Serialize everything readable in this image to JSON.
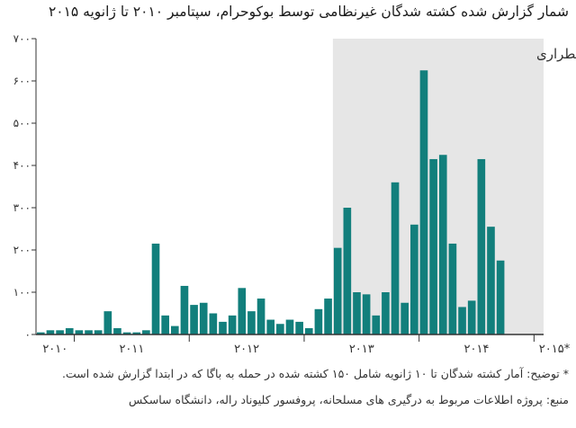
{
  "title": "شمار گزارش شده کشته شدگان غیرنظامی توسط بوکوحرام، سپتامبر ۲۰۱۰ تا ژانویه ۲۰۱۵",
  "note": "* توضیح: آمار کشته شدگان تا ۱۰ ژانویه شامل ۱۵۰ کشته شده در حمله به باگا که در ابتدا گزارش شده است.",
  "source": "منبع: پروژه اطلاعات مربوط به درگیری های مسلحانه، پروفسور کلیوناد راله، دانشگاه ساسکس",
  "colors": {
    "bar": "#127f7c",
    "shade": "#e6e6e6",
    "axis": "#333333",
    "grid": "#bdbdbd"
  },
  "chart_data": {
    "type": "bar",
    "ylim": [
      0,
      700
    ],
    "yticks": [
      0,
      100,
      200,
      300,
      400,
      500,
      600,
      700
    ],
    "ytick_labels": [
      "۰",
      "۱۰۰",
      "۲۰۰",
      "۳۰۰",
      "۴۰۰",
      "۵۰۰",
      "۶۰۰",
      "۷۰۰"
    ],
    "x_labels": [
      {
        "label": "۲۰۱۰",
        "start_index": 0,
        "months": 4
      },
      {
        "label": "۲۰۱۱",
        "start_index": 4,
        "months": 12
      },
      {
        "label": "۲۰۱۲",
        "start_index": 16,
        "months": 12
      },
      {
        "label": "۲۰۱۳",
        "start_index": 28,
        "months": 12
      },
      {
        "label": "۲۰۱۴",
        "start_index": 40,
        "months": 12
      },
      {
        "label": "۲۰۱۵*",
        "start_index": 52,
        "months": 1
      }
    ],
    "categories": [
      "2010-09",
      "2010-10",
      "2010-11",
      "2010-12",
      "2011-01",
      "2011-02",
      "2011-03",
      "2011-04",
      "2011-05",
      "2011-06",
      "2011-07",
      "2011-08",
      "2011-09",
      "2011-10",
      "2011-11",
      "2011-12",
      "2012-01",
      "2012-02",
      "2012-03",
      "2012-04",
      "2012-05",
      "2012-06",
      "2012-07",
      "2012-08",
      "2012-09",
      "2012-10",
      "2012-11",
      "2012-12",
      "2013-01",
      "2013-02",
      "2013-03",
      "2013-04",
      "2013-05",
      "2013-06",
      "2013-07",
      "2013-08",
      "2013-09",
      "2013-10",
      "2013-11",
      "2013-12",
      "2014-01",
      "2014-02",
      "2014-03",
      "2014-04",
      "2014-05",
      "2014-06",
      "2014-07",
      "2014-08",
      "2014-09",
      "2014-10",
      "2014-11",
      "2014-12",
      "2015-01"
    ],
    "values": [
      5,
      10,
      10,
      15,
      10,
      10,
      10,
      55,
      15,
      5,
      5,
      10,
      215,
      45,
      20,
      115,
      70,
      75,
      50,
      30,
      45,
      110,
      55,
      85,
      35,
      25,
      35,
      30,
      15,
      60,
      85,
      205,
      300,
      100,
      95,
      45,
      100,
      360,
      75,
      260,
      625,
      415,
      425,
      215,
      65,
      80,
      415,
      255,
      175,
      0,
      0,
      0,
      0
    ],
    "shaded_region": {
      "label": "وضعیت اضطراری",
      "start_index": 31,
      "end_index": 53
    },
    "grid": false
  }
}
